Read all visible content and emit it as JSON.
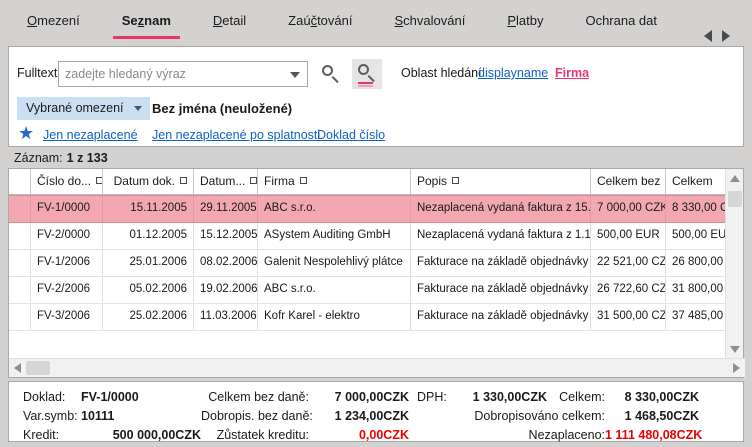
{
  "colors": {
    "accent_red": "#e8356b",
    "link_blue": "#0e62c4",
    "selected_row_pink": "#f3a7b1",
    "alert_red": "#ec0000",
    "window_gray": "#d4d2d0"
  },
  "tabs": {
    "items": [
      {
        "label": "Omezení"
      },
      {
        "label": "Seznam"
      },
      {
        "label": "Detail"
      },
      {
        "label": "Zaúčtování"
      },
      {
        "label": "Schvalování"
      },
      {
        "label": "Platby"
      },
      {
        "label": "Ochrana dat"
      }
    ],
    "active": "Seznam"
  },
  "search": {
    "fulltext_label": "Fulltext",
    "placeholder": "zadejte hledaný výraz",
    "scope_label": "Oblast hledání",
    "scope_links": [
      {
        "label": "displayname"
      },
      {
        "label": "Firma"
      }
    ]
  },
  "restriction": {
    "button_label": "Vybrané omezení",
    "current_name": "Bez jména (neuložené)",
    "quick_links": [
      {
        "label": "Jen nezaplacené"
      },
      {
        "label": "Jen nezaplacené po splatnosti"
      },
      {
        "label": "Doklad číslo"
      }
    ]
  },
  "record_count": {
    "label": "Záznam:",
    "value": "1 z 133"
  },
  "table": {
    "headers": [
      {
        "label": "Číslo do..."
      },
      {
        "label": "Datum dok."
      },
      {
        "label": "Datum..."
      },
      {
        "label": "Firma"
      },
      {
        "label": "Popis"
      },
      {
        "label": "Celkem bez"
      },
      {
        "label": "Celkem"
      }
    ],
    "rows": [
      {
        "cislo": "FV-1/0000",
        "datum_dok": "15.11.2005",
        "datum": "29.11.2005",
        "firma": "ABC s.r.o.",
        "popis": "Nezaplacená vydaná faktura z 15.",
        "celkem_bez": "7 000,00 CZK",
        "celkem": "8 330,00 CZK",
        "selected": true
      },
      {
        "cislo": "FV-2/0000",
        "datum_dok": "01.12.2005",
        "datum": "15.12.2005",
        "firma": "ASystem Auditing GmbH",
        "popis": "Nezaplacená vydaná faktura z 1.1",
        "celkem_bez": "500,00 EUR",
        "celkem": "500,00 EUR",
        "selected": false
      },
      {
        "cislo": "FV-1/2006",
        "datum_dok": "25.01.2006",
        "datum": "08.02.2006",
        "firma": "Galenit Nespolehlivý plátce",
        "popis": "Fakturace na základě objednávky",
        "celkem_bez": "22 521,00 CZK",
        "celkem": "26 800,00 CZK",
        "selected": false
      },
      {
        "cislo": "FV-2/2006",
        "datum_dok": "05.02.2006",
        "datum": "19.02.2006",
        "firma": "ABC s.r.o.",
        "popis": "Fakturace na základě objednávky",
        "celkem_bez": "26 722,60 CZK",
        "celkem": "31 800,00 CZK",
        "selected": false
      },
      {
        "cislo": "FV-3/2006",
        "datum_dok": "25.02.2006",
        "datum": "11.03.2006",
        "firma": "Kofr Karel - elektro",
        "popis": "Fakturace na základě objednávky",
        "celkem_bez": "31 500,00 CZK",
        "celkem": "37 485,00 CZK",
        "selected": false
      }
    ]
  },
  "summary": {
    "rows": [
      {
        "l1": "Doklad:",
        "v1": "FV-1/0000",
        "l2": "Celkem bez daně:",
        "v2": "7 000,00CZK",
        "l3": "DPH:",
        "v3": "1 330,00CZK",
        "l4": "Celkem:",
        "v4": "8 330,00CZK"
      },
      {
        "l1": "Var.symb:",
        "v1": "10111",
        "l2": "Dobropis. bez daně:",
        "v2": "1 234,00CZK",
        "lm": "Dobropisováno celkem:",
        "v4": "1 468,50CZK"
      },
      {
        "l1": "Kredit:",
        "v1": "500 000,00CZK",
        "l2": "Zůstatek kreditu:",
        "v2": "0,00CZK",
        "lm": "Nezaplaceno:",
        "v4": "1 111 480,08CZK"
      }
    ]
  }
}
